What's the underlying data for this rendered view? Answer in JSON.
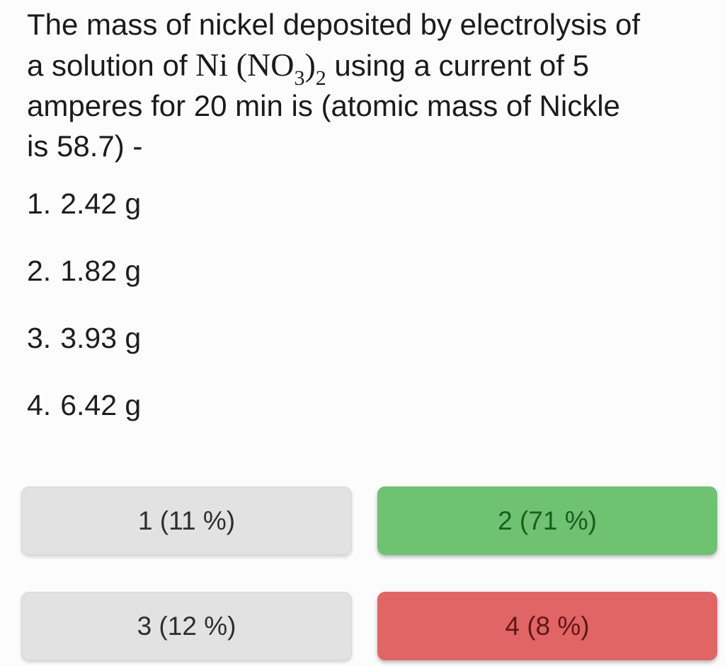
{
  "question": {
    "line1": "The mass of nickel deposited by electrolysis of",
    "line2_pre": "a solution of ",
    "formula": {
      "main": "Ni (NO",
      "sub1": "3",
      "close": ")",
      "sub2": "2"
    },
    "line2_post": " using a current of 5",
    "line3": "amperes for 20 min is (atomic mass of Nickle",
    "line4": "is 58.7) -"
  },
  "options": [
    {
      "number": "1.",
      "value": "2.42 g"
    },
    {
      "number": "2.",
      "value": "1.82 g"
    },
    {
      "number": "3.",
      "value": "3.93 g"
    },
    {
      "number": "4.",
      "value": "6.42 g"
    }
  ],
  "results": [
    {
      "label": "1 (11 %)",
      "state": "neutral"
    },
    {
      "label": "2 (71 %)",
      "state": "correct"
    },
    {
      "label": "3 (12 %)",
      "state": "neutral"
    },
    {
      "label": "4 (8 %)",
      "state": "incorrect"
    }
  ],
  "colors": {
    "page_background": "#fcfcfc",
    "question_text": "#1b1b1b",
    "neutral_button_bg": "#e2e2e2",
    "neutral_button_text": "#2e2e2e",
    "correct_button_bg": "#6ec271",
    "correct_button_text": "#1d5c20",
    "incorrect_button_bg": "#e16565",
    "incorrect_button_text": "#5e1717"
  }
}
